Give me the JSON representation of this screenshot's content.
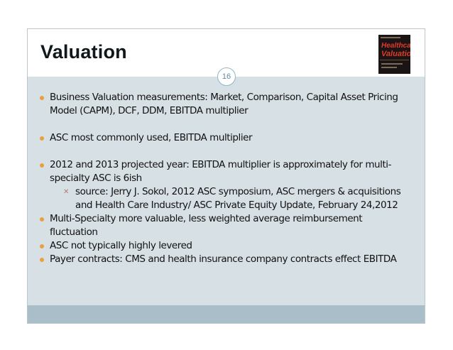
{
  "slide": {
    "title": "Valuation",
    "page_number": "16",
    "cover_image": {
      "alt_line1": "Healthcare",
      "alt_line2": "Valuation"
    }
  },
  "bullets": [
    {
      "text": "Business Valuation measurements:  Market, Comparison, Capital Asset Pricing",
      "text2": "Model (CAPM), DCF, DDM, EBITDA multiplier"
    },
    {
      "text": "ASC most commonly used, EBITDA multiplier"
    },
    {
      "text": "2012  and 2013 projected year: EBITDA multiplier is approximately for multi-",
      "text2": "specialty ASC is 6ish",
      "sub": {
        "text": "source: Jerry J. Sokol, 2012 ASC symposium, ASC mergers & acquisitions",
        "text2": "and Health Care Industry/ ASC Private Equity Update, February 24,2012"
      }
    },
    {
      "text": "Multi-Specialty more valuable, less weighted average reimbursement",
      "text2": "fluctuation"
    },
    {
      "text": "ASC not typically highly levered"
    },
    {
      "text": "Payer contracts:  CMS and health insurance company contracts effect EBITDA"
    }
  ],
  "colors": {
    "bullet": "#e8a03b",
    "content_bg": "#d7e0e5",
    "bar": "#a9bec8"
  }
}
